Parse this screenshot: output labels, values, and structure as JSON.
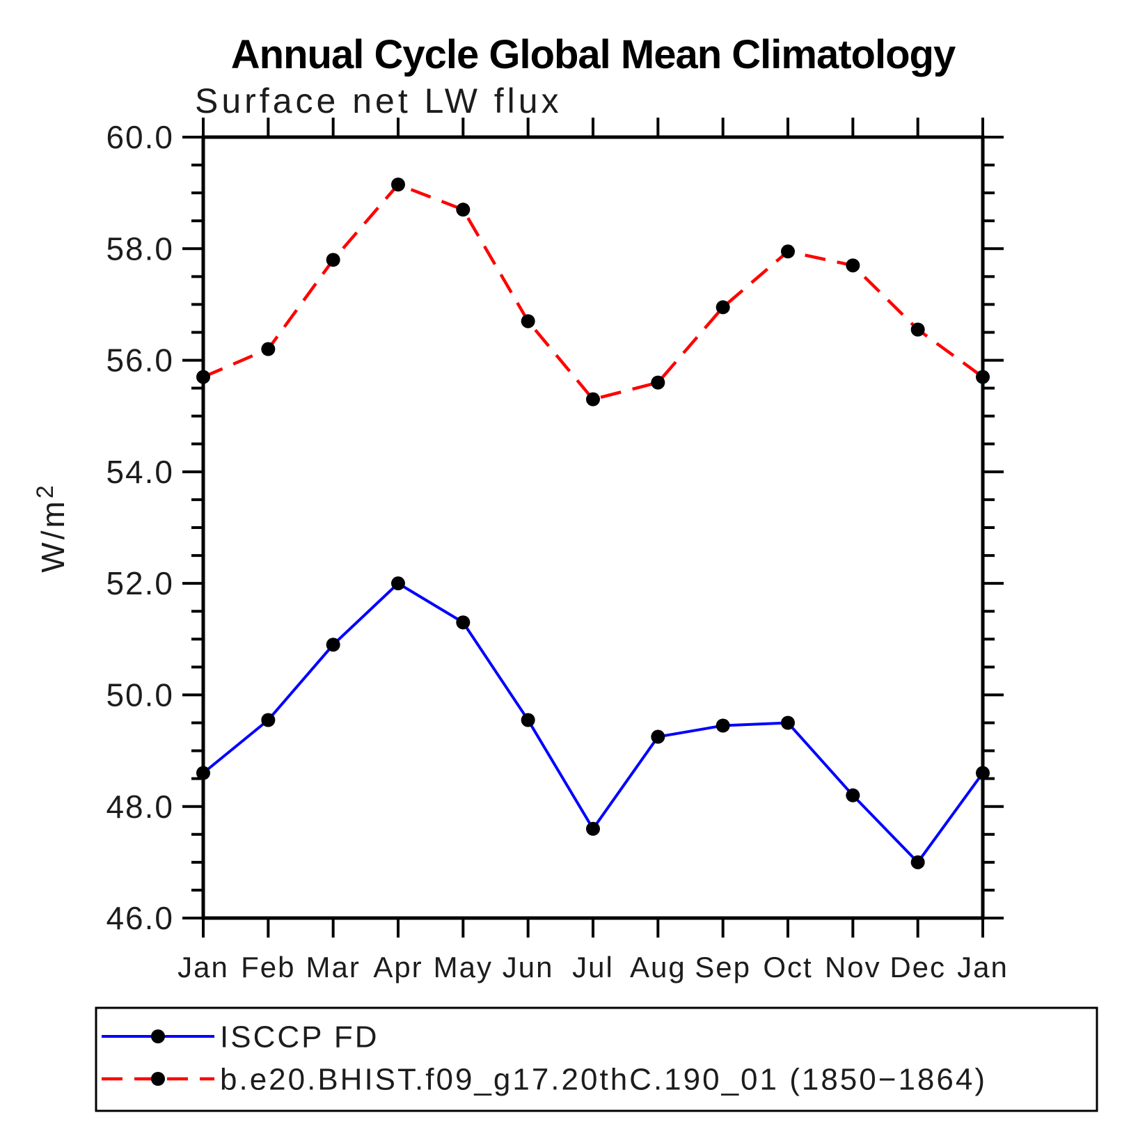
{
  "chart_data": {
    "type": "line",
    "title": "Annual Cycle Global Mean Climatology",
    "subtitle": "Surface net LW flux",
    "ylabel": "W/m²",
    "ylim": [
      46.0,
      60.0
    ],
    "ytick_major_step": 2.0,
    "ytick_minor_step": 0.5,
    "ytick_labels": [
      "46.0",
      "48.0",
      "50.0",
      "52.0",
      "54.0",
      "56.0",
      "58.0",
      "60.0"
    ],
    "categories": [
      "Jan",
      "Feb",
      "Mar",
      "Apr",
      "May",
      "Jun",
      "Jul",
      "Aug",
      "Sep",
      "Oct",
      "Nov",
      "Dec",
      "Jan"
    ],
    "grid": false,
    "legend_position": "bottom-left-box",
    "marker": {
      "shape": "circle",
      "color": "#000000"
    },
    "axis_color": "#000000",
    "background_color": "#ffffff",
    "series": [
      {
        "name": "ISCCP FD",
        "color": "#0000ff",
        "line_style": "solid",
        "values": [
          48.6,
          49.55,
          50.9,
          52.0,
          51.3,
          49.55,
          47.6,
          49.25,
          49.45,
          49.5,
          48.2,
          47.0,
          48.6
        ]
      },
      {
        "name": "b.e20.BHIST.f09_g17.20thC.190_01 (1850−1864)",
        "color": "#ff0000",
        "line_style": "dashed",
        "values": [
          55.7,
          56.2,
          57.8,
          59.15,
          58.7,
          56.7,
          55.3,
          55.6,
          56.95,
          57.95,
          57.7,
          56.55,
          55.7
        ]
      }
    ]
  }
}
